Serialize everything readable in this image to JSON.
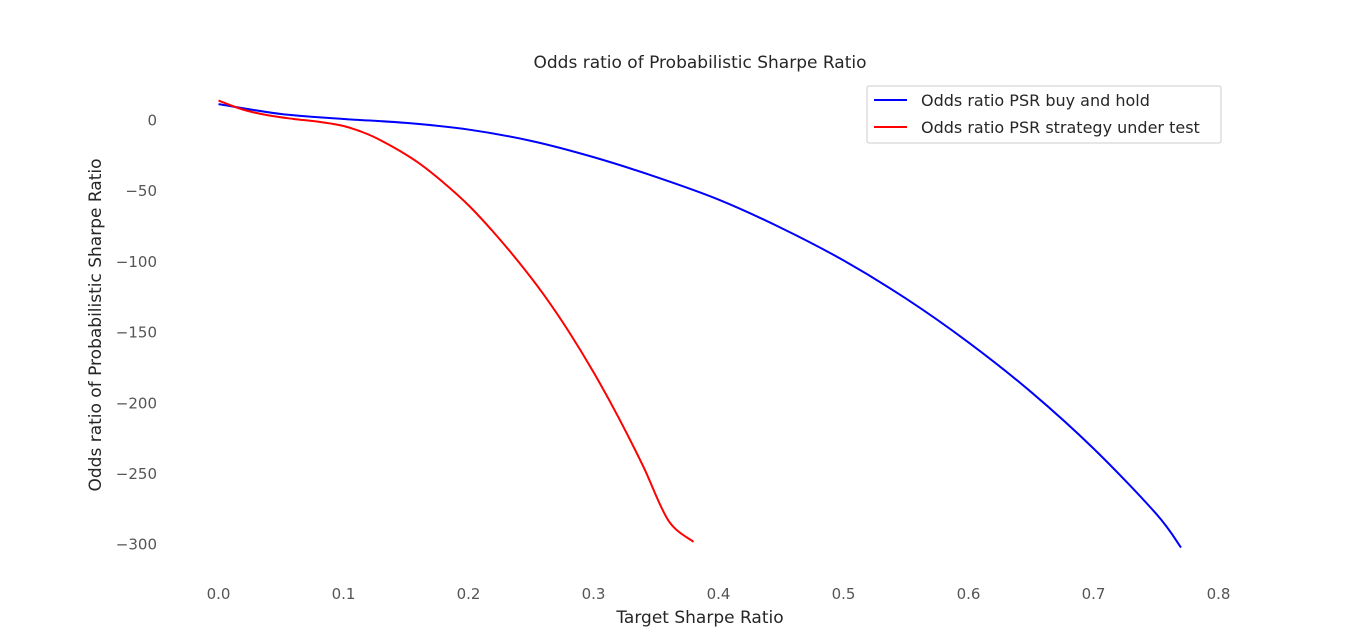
{
  "chart_data": {
    "type": "line",
    "title": "Odds ratio of Probabilistic Sharpe Ratio",
    "xlabel": "Target Sharpe Ratio",
    "ylabel": "Odds ratio of Probabilistic Sharpe Ratio",
    "xlim": [
      -0.03,
      0.81
    ],
    "ylim": [
      -320,
      25
    ],
    "xticks": [
      0.0,
      0.1,
      0.2,
      0.3,
      0.4,
      0.5,
      0.6,
      0.7,
      0.8
    ],
    "xtick_labels": [
      "0.0",
      "0.1",
      "0.2",
      "0.3",
      "0.4",
      "0.5",
      "0.6",
      "0.7",
      "0.8"
    ],
    "yticks": [
      0,
      -50,
      -100,
      -150,
      -200,
      -250,
      -300
    ],
    "ytick_labels": [
      "0",
      "−50",
      "−100",
      "−150",
      "−200",
      "−250",
      "−300"
    ],
    "grid": false,
    "legend_position": "top-right",
    "series": [
      {
        "name": "Odds ratio PSR buy and hold",
        "color": "#0000ff",
        "x": [
          0.0,
          0.05,
          0.1,
          0.15,
          0.2,
          0.25,
          0.3,
          0.35,
          0.4,
          0.45,
          0.5,
          0.55,
          0.6,
          0.65,
          0.7,
          0.75,
          0.77
        ],
        "y": [
          11.5,
          4.5,
          1.0,
          -1.8,
          -6.5,
          -14.5,
          -26,
          -40,
          -56,
          -76,
          -99,
          -126,
          -157,
          -192,
          -232,
          -278,
          -302
        ]
      },
      {
        "name": "Odds ratio PSR strategy under test",
        "color": "#ff0000",
        "x": [
          0.0,
          0.02,
          0.04,
          0.06,
          0.08,
          0.1,
          0.12,
          0.14,
          0.16,
          0.18,
          0.2,
          0.22,
          0.24,
          0.26,
          0.28,
          0.3,
          0.32,
          0.34,
          0.36,
          0.38
        ],
        "y": [
          14,
          7.5,
          3.5,
          1.0,
          -1.0,
          -4.0,
          -10,
          -19,
          -30,
          -44,
          -60,
          -79,
          -100,
          -123,
          -149,
          -178,
          -210,
          -245,
          -283,
          -298
        ]
      }
    ]
  }
}
